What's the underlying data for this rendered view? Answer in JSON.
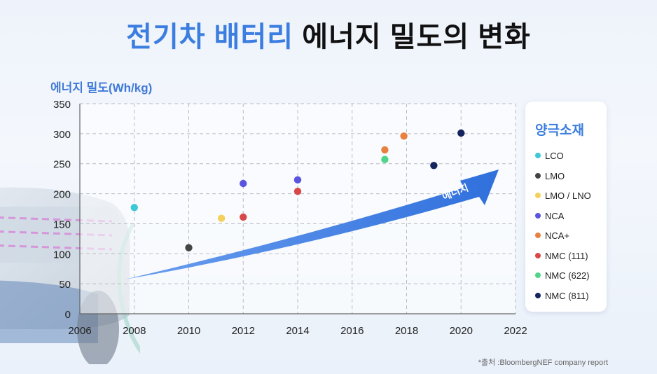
{
  "title_accent": "전기차 배터리",
  "title_rest": "에너지 밀도의 변화",
  "source": "*출처 :BloombergNEF company report",
  "legend_title": "양극소재",
  "arrow_label": "에너지",
  "chart_data": {
    "type": "scatter",
    "title": "전기차 배터리 에너지 밀도의 변화",
    "ylabel": "에너지 밀도(Wh/kg)",
    "xlabel": "",
    "xlim": [
      2006,
      2022
    ],
    "ylim": [
      0,
      350
    ],
    "xticks": [
      2006,
      2008,
      2010,
      2012,
      2014,
      2016,
      2018,
      2020,
      2022
    ],
    "yticks": [
      0,
      50,
      100,
      150,
      200,
      250,
      300,
      350
    ],
    "grid": true,
    "legend_position": "right",
    "series": [
      {
        "name": "LCO",
        "color": "#3cc8d6",
        "points": [
          [
            2008,
            177
          ]
        ]
      },
      {
        "name": "LMO",
        "color": "#444444",
        "points": [
          [
            2010,
            110
          ]
        ]
      },
      {
        "name": "LMO / LNO",
        "color": "#f3d15a",
        "points": [
          [
            2011.2,
            159
          ]
        ]
      },
      {
        "name": "NCA",
        "color": "#5a54e0",
        "points": [
          [
            2012,
            217
          ],
          [
            2014,
            223
          ]
        ]
      },
      {
        "name": "NCA+",
        "color": "#e8803f",
        "points": [
          [
            2017.2,
            273
          ],
          [
            2017.9,
            296
          ]
        ]
      },
      {
        "name": "NMC (111)",
        "color": "#d94848",
        "points": [
          [
            2012,
            161
          ],
          [
            2014,
            204
          ]
        ]
      },
      {
        "name": "NMC (622)",
        "color": "#4fd48a",
        "points": [
          [
            2017.2,
            257
          ]
        ]
      },
      {
        "name": "NMC (811)",
        "color": "#14245e",
        "points": [
          [
            2019,
            247
          ],
          [
            2020,
            301
          ]
        ]
      }
    ]
  }
}
